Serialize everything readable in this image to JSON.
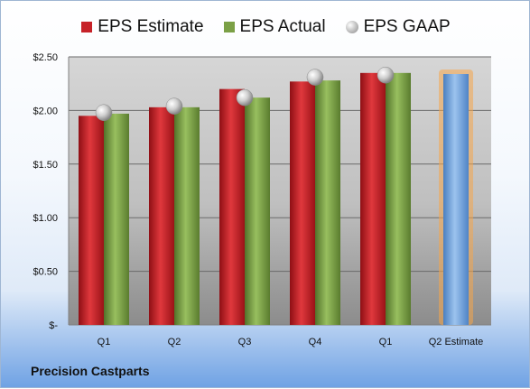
{
  "chart_data": {
    "type": "bar",
    "categories": [
      "Q1",
      "Q2",
      "Q3",
      "Q4",
      "Q1",
      "Q2 Estimate"
    ],
    "series": [
      {
        "name": "EPS Estimate",
        "values": [
          1.95,
          2.03,
          2.2,
          2.27,
          2.35,
          null
        ]
      },
      {
        "name": "EPS Actual",
        "values": [
          1.97,
          2.03,
          2.12,
          2.28,
          2.35,
          null
        ]
      },
      {
        "name": "EPS GAAP",
        "values": [
          1.98,
          2.04,
          2.12,
          2.31,
          2.33,
          null
        ]
      }
    ],
    "projected": {
      "category": "Q2 Estimate",
      "value": 2.34
    },
    "yticks": [
      "$-",
      "$0.50",
      "$1.00",
      "$1.50",
      "$2.00",
      "$2.50"
    ],
    "ylim": [
      0,
      2.5
    ],
    "legend_position": "top",
    "grid": true
  },
  "colors": {
    "estimate": "#c62228",
    "actual": "#7ba046",
    "gaap": "#b5b5b5",
    "projected": "#6f9fd6",
    "projected_glow": "#f5a54a"
  },
  "company": "Precision Castparts"
}
